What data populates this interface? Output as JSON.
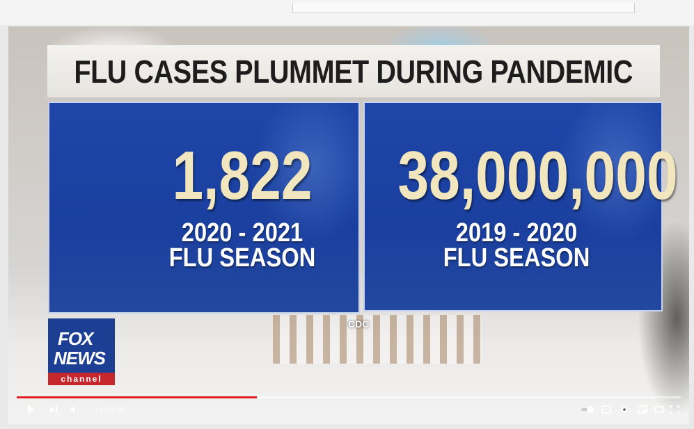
{
  "graphic": {
    "title": "FLU CASES PLUMMET DURING PANDEMIC",
    "panels": [
      {
        "number": "1,822",
        "years": "2020 - 2021",
        "label": "FLU SEASON"
      },
      {
        "number": "38,000,000",
        "years": "2019 - 2020",
        "label": "FLU SEASON"
      }
    ],
    "source": "CDC",
    "logo": {
      "line1": "FOX",
      "line2": "NEWS",
      "line3": "channel"
    }
  },
  "player": {
    "time": "2:02 / 5:50"
  }
}
